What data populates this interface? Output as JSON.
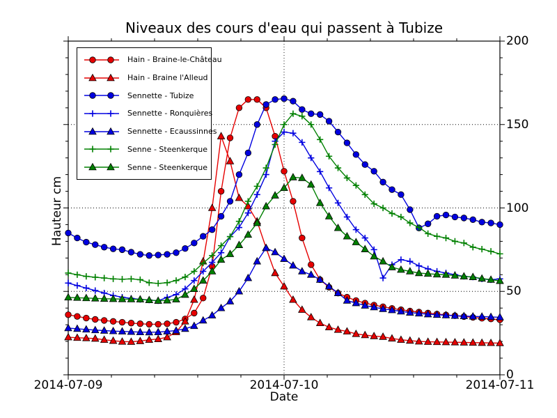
{
  "title": "Niveaux des cours d'eau qui passent à Tubize",
  "chart_data": {
    "type": "line",
    "title": "Niveaux des cours d'eau qui passent à Tubize",
    "xlabel": "Date",
    "ylabel": "Hauteur cm",
    "x_unit": "hours from 2014-07-09 00:00",
    "x_range_hours": [
      0,
      48
    ],
    "x_tick_positions_hours": [
      0,
      24,
      48
    ],
    "x_tick_labels": [
      "2014-07-09",
      "2014-07-10",
      "2014-07-11"
    ],
    "x_minor_tick_hours": [
      4.8,
      9.6,
      14.4,
      19.2,
      28.8,
      33.6,
      38.4,
      43.2
    ],
    "ylim": [
      0,
      200
    ],
    "y_ticks": [
      0,
      50,
      100,
      150,
      200
    ],
    "y_tick_labels": [
      "0",
      "50",
      "100",
      "150",
      "200"
    ],
    "y_minor_tick_step": 10,
    "grid": {
      "style": "dotted",
      "y_values": [
        50,
        100,
        150
      ],
      "x_hours": [
        24
      ]
    },
    "legend_position": "upper left",
    "series": [
      {
        "name": "Hain - Braine-le-Château",
        "color": "#e60000",
        "marker": "circle",
        "values": [
          36,
          35,
          34,
          33.2,
          32.6,
          32,
          31.5,
          31,
          30.6,
          30.3,
          30.3,
          30.6,
          31.5,
          33.5,
          37,
          46,
          65,
          110,
          142,
          160,
          165,
          165,
          160,
          143,
          122,
          104,
          82,
          66,
          57,
          52.5,
          49,
          46.5,
          44.5,
          43,
          41.8,
          40.8,
          39.8,
          39,
          38.2,
          37.6,
          37,
          36.4,
          35.9,
          35.4,
          34.9,
          34.4,
          33.9,
          33.5,
          33
        ]
      },
      {
        "name": "Hain - Braine l'Alleud",
        "color": "#e60000",
        "marker": "triangle",
        "values": [
          22.5,
          22.2,
          22,
          21.7,
          21,
          20.4,
          19.9,
          19.8,
          20.2,
          21,
          21.4,
          22.5,
          25.6,
          32,
          45,
          68,
          100,
          143,
          128,
          106,
          101,
          92,
          76,
          61,
          53,
          45,
          39,
          34.5,
          31,
          28.5,
          27,
          26,
          24.5,
          23.8,
          23.2,
          22.8,
          21.8,
          21,
          20.5,
          20,
          19.8,
          19.7,
          19.6,
          19.5,
          19.4,
          19.3,
          19.2,
          19.1,
          19
        ]
      },
      {
        "name": "Sennette - Tubize",
        "color": "#0000e0",
        "marker": "circle",
        "values": [
          85,
          82,
          79.5,
          78,
          76.5,
          75.5,
          75,
          73.5,
          72.2,
          71.5,
          71.8,
          72.2,
          73.2,
          75.7,
          79,
          83,
          87,
          95,
          104,
          120,
          133,
          150,
          162,
          165,
          165.5,
          164,
          159,
          156.5,
          156,
          152,
          145.5,
          139,
          132,
          126,
          122,
          115.5,
          111,
          108,
          99,
          88,
          90.5,
          95,
          95.8,
          94.6,
          94,
          93,
          91.5,
          91,
          90
        ]
      },
      {
        "name": "Sennette - Ronquières",
        "color": "#0000e0",
        "marker": "plus",
        "values": [
          55,
          53.5,
          52,
          50.5,
          49,
          47.5,
          46.5,
          45.8,
          45.2,
          44.8,
          44.4,
          46.4,
          48.1,
          51.5,
          56.5,
          62,
          67.4,
          73.2,
          82.8,
          88.3,
          97,
          108,
          120,
          140,
          145.5,
          144.8,
          139.3,
          130,
          121.8,
          112,
          103,
          94.6,
          87,
          82,
          75,
          58,
          66,
          69,
          68,
          65.3,
          63.5,
          62,
          61,
          60,
          59,
          58.6,
          57.5,
          57,
          57.5
        ]
      },
      {
        "name": "Sennette - Ecaussinnes",
        "color": "#0000e0",
        "marker": "triangle",
        "values": [
          28,
          27.6,
          27.2,
          26.8,
          26.5,
          26.2,
          26,
          25.8,
          25.6,
          25.5,
          25.6,
          26,
          26.5,
          27.6,
          29.3,
          32.6,
          35.6,
          40,
          44,
          50,
          58,
          68,
          76,
          73.5,
          69.5,
          65.5,
          62,
          60,
          57,
          53,
          49,
          44.5,
          43,
          41.5,
          40.5,
          39.5,
          38.8,
          38,
          37.3,
          36.8,
          36.3,
          36,
          35.7,
          35.4,
          35.2,
          35,
          34.9,
          34.7,
          34.5
        ]
      },
      {
        "name": "Senne - Steenkerque",
        "color": "#008000",
        "marker": "plus",
        "values": [
          61,
          60,
          59,
          58.5,
          58,
          57.5,
          57.3,
          57.5,
          57,
          55.2,
          54.8,
          55.2,
          56.5,
          58.6,
          62,
          67,
          71.5,
          77.4,
          82.8,
          92,
          104,
          113,
          124,
          138,
          150,
          156.5,
          155,
          150,
          141,
          131,
          124,
          118,
          113.5,
          108,
          102.5,
          100,
          96.7,
          94.6,
          91,
          88.3,
          84.6,
          83,
          82,
          80,
          79,
          76.5,
          75.3,
          74,
          72.5
        ]
      },
      {
        "name": "Senne - Steenkerque",
        "color": "#008000",
        "marker": "triangle",
        "values": [
          46.4,
          46.2,
          46,
          45.8,
          45.6,
          45.5,
          45.4,
          45.3,
          45.2,
          44.8,
          44.4,
          44.6,
          45.2,
          48,
          51.5,
          56.5,
          62,
          69,
          72.4,
          77.8,
          84,
          91,
          101,
          107.5,
          112,
          118.4,
          118,
          114,
          103,
          95,
          88,
          83,
          79.5,
          75.3,
          71,
          68,
          64.5,
          63,
          62,
          61,
          60.6,
          60.2,
          60,
          59.5,
          59,
          58.6,
          57.7,
          57,
          56.3
        ]
      }
    ]
  }
}
